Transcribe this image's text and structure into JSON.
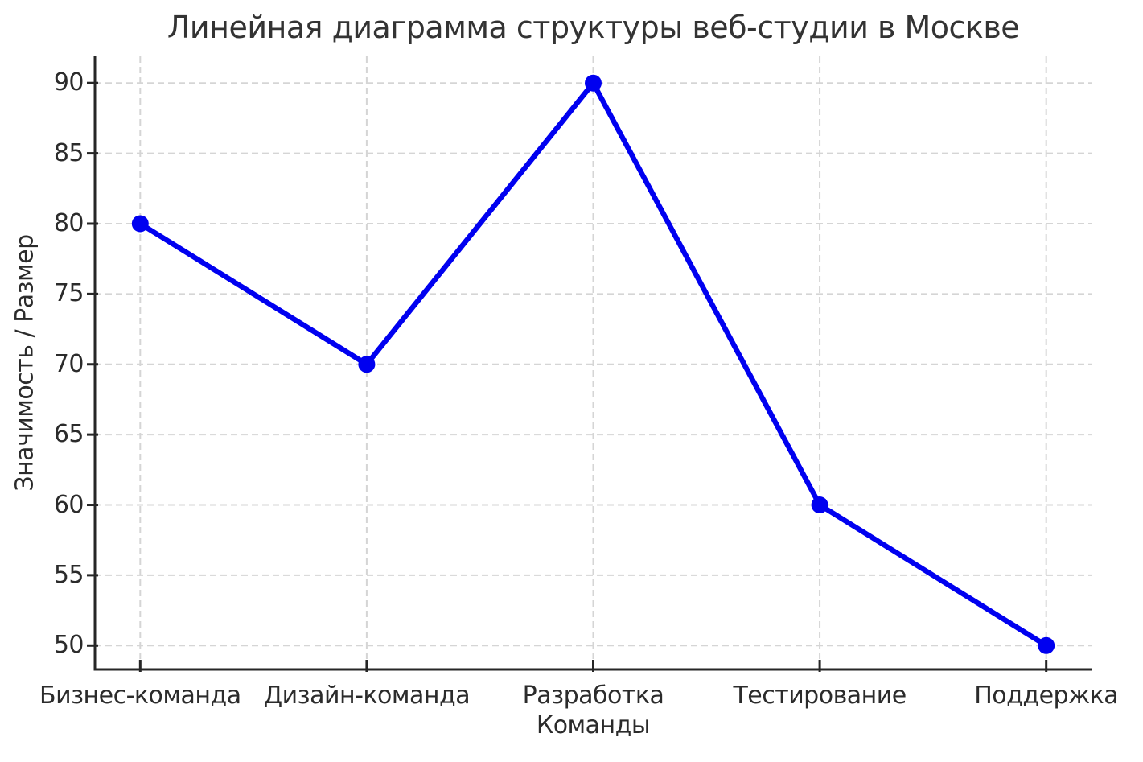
{
  "chart_data": {
    "type": "line",
    "title": "Линейная диаграмма структуры веб-студии в Москве",
    "xlabel": "Команды",
    "ylabel": "Значимость / Размер",
    "categories": [
      "Бизнес-команда",
      "Дизайн-команда",
      "Разработка",
      "Тестирование",
      "Поддержка"
    ],
    "values": [
      80,
      70,
      90,
      60,
      50
    ],
    "yticks": [
      50,
      55,
      60,
      65,
      70,
      75,
      80,
      85,
      90
    ],
    "ylim": [
      48.3,
      91.9
    ],
    "x_margin": 0.2,
    "grid": "dashed",
    "legend": "none",
    "line_color": "#0000f0",
    "marker": "circle",
    "marker_color": "#0000f0",
    "grid_color": "#d5d5d5",
    "axis_color": "#262626",
    "text_color": "#2b2b2b"
  }
}
